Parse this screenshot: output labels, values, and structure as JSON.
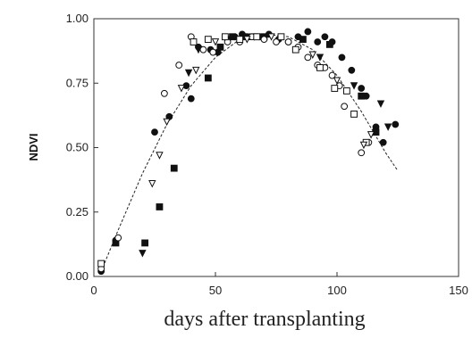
{
  "chart_data": {
    "type": "scatter",
    "title": "",
    "xlabel": "days after transplanting",
    "ylabel": "NDVI",
    "xlim": [
      0,
      150
    ],
    "ylim": [
      0,
      1.0
    ],
    "x_ticks": [
      0,
      50,
      100,
      150
    ],
    "y_ticks": [
      0.0,
      0.25,
      0.5,
      0.75,
      1.0
    ],
    "x_tick_labels": [
      "0",
      "50",
      "100",
      "150"
    ],
    "y_tick_labels": [
      "0.00",
      "0.25",
      "0.50",
      "0.75",
      "1.00"
    ],
    "grid": false,
    "legend": "none",
    "series": [
      {
        "marker": "filled-circle",
        "x": [
          3,
          9,
          25,
          31,
          38,
          40,
          43,
          48,
          51,
          55,
          58,
          61,
          64,
          68,
          72,
          76,
          80,
          84,
          88,
          92,
          95,
          98,
          102,
          106,
          110,
          112,
          116,
          119,
          124
        ],
        "y": [
          0.02,
          0.14,
          0.56,
          0.62,
          0.74,
          0.69,
          0.89,
          0.88,
          0.87,
          0.92,
          0.93,
          0.94,
          0.93,
          0.93,
          0.94,
          0.92,
          0.91,
          0.93,
          0.95,
          0.91,
          0.93,
          0.91,
          0.85,
          0.8,
          0.73,
          0.7,
          0.58,
          0.52,
          0.59
        ]
      },
      {
        "marker": "filled-square",
        "x": [
          9,
          21,
          27,
          33,
          47,
          52,
          57,
          62,
          70,
          86,
          97,
          110,
          116
        ],
        "y": [
          0.13,
          0.13,
          0.27,
          0.42,
          0.77,
          0.89,
          0.93,
          0.93,
          0.93,
          0.92,
          0.9,
          0.7,
          0.56
        ]
      },
      {
        "marker": "filled-triangle-down",
        "x": [
          20,
          39,
          43,
          66,
          93,
          107,
          118,
          121
        ],
        "y": [
          0.09,
          0.79,
          0.88,
          0.93,
          0.85,
          0.74,
          0.67,
          0.58
        ]
      },
      {
        "marker": "open-circle",
        "x": [
          3,
          10,
          29,
          35,
          40,
          45,
          49,
          55,
          60,
          65,
          70,
          75,
          80,
          84,
          88,
          92,
          95,
          98,
          101,
          103,
          110,
          113
        ],
        "y": [
          0.03,
          0.15,
          0.71,
          0.82,
          0.93,
          0.88,
          0.87,
          0.91,
          0.91,
          0.93,
          0.92,
          0.91,
          0.91,
          0.89,
          0.85,
          0.82,
          0.81,
          0.78,
          0.74,
          0.66,
          0.48,
          0.52
        ]
      },
      {
        "marker": "open-square",
        "x": [
          3,
          41,
          47,
          54,
          60,
          67,
          77,
          83,
          93,
          99,
          104,
          107,
          112
        ],
        "y": [
          0.05,
          0.91,
          0.92,
          0.93,
          0.92,
          0.93,
          0.93,
          0.88,
          0.81,
          0.73,
          0.72,
          0.63,
          0.52
        ]
      },
      {
        "marker": "open-triangle-down",
        "x": [
          24,
          27,
          30,
          36,
          42,
          50,
          63,
          73,
          90,
          100,
          111,
          114
        ],
        "y": [
          0.36,
          0.47,
          0.6,
          0.73,
          0.8,
          0.91,
          0.92,
          0.93,
          0.86,
          0.76,
          0.51,
          0.55
        ]
      }
    ],
    "fit_curve": {
      "style": "dashed",
      "x": [
        3,
        10,
        20,
        30,
        40,
        50,
        60,
        70,
        80,
        90,
        100,
        110,
        120,
        125
      ],
      "y": [
        0.02,
        0.18,
        0.4,
        0.59,
        0.74,
        0.85,
        0.92,
        0.94,
        0.93,
        0.88,
        0.78,
        0.64,
        0.48,
        0.41
      ]
    }
  }
}
